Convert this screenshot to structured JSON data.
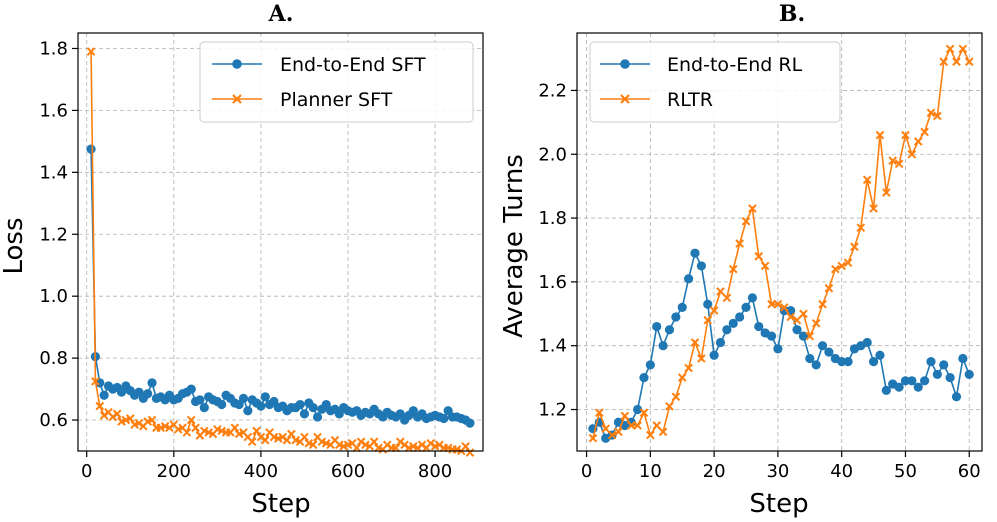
{
  "colors": {
    "blue": "#1f77b4",
    "orange": "#ff7f0e"
  },
  "chart_data": [
    {
      "panel": "A.",
      "type": "line",
      "xlabel": "Step",
      "ylabel": "Loss",
      "xlim": [
        -20,
        910
      ],
      "ylim": [
        0.5,
        1.85
      ],
      "xticks": [
        0,
        200,
        400,
        600,
        800
      ],
      "yticks": [
        0.6,
        0.8,
        1.0,
        1.2,
        1.4,
        1.6,
        1.8
      ],
      "ytick_format": 1,
      "grid": true,
      "legend": "top-right",
      "series": [
        {
          "name": "End-to-End SFT",
          "marker": "circle",
          "color": "blue",
          "x": [
            10,
            20,
            30,
            40,
            50,
            60,
            70,
            80,
            90,
            100,
            110,
            120,
            130,
            140,
            150,
            160,
            170,
            180,
            190,
            200,
            210,
            220,
            230,
            240,
            250,
            260,
            270,
            280,
            290,
            300,
            310,
            320,
            330,
            340,
            350,
            360,
            370,
            380,
            390,
            400,
            410,
            420,
            430,
            440,
            450,
            460,
            470,
            480,
            490,
            500,
            510,
            520,
            530,
            540,
            550,
            560,
            570,
            580,
            590,
            600,
            610,
            620,
            630,
            640,
            650,
            660,
            670,
            680,
            690,
            700,
            710,
            720,
            730,
            740,
            750,
            760,
            770,
            780,
            790,
            800,
            810,
            820,
            830,
            840,
            850,
            860,
            870,
            880
          ],
          "y": [
            1.475,
            0.805,
            0.72,
            0.68,
            0.71,
            0.7,
            0.705,
            0.69,
            0.71,
            0.695,
            0.68,
            0.69,
            0.67,
            0.685,
            0.72,
            0.67,
            0.675,
            0.665,
            0.68,
            0.665,
            0.67,
            0.685,
            0.69,
            0.7,
            0.66,
            0.665,
            0.64,
            0.675,
            0.665,
            0.66,
            0.65,
            0.68,
            0.67,
            0.655,
            0.65,
            0.67,
            0.63,
            0.665,
            0.655,
            0.645,
            0.675,
            0.65,
            0.66,
            0.64,
            0.645,
            0.63,
            0.64,
            0.64,
            0.65,
            0.62,
            0.655,
            0.64,
            0.61,
            0.635,
            0.65,
            0.63,
            0.635,
            0.62,
            0.64,
            0.63,
            0.625,
            0.63,
            0.615,
            0.625,
            0.62,
            0.635,
            0.62,
            0.61,
            0.625,
            0.615,
            0.61,
            0.62,
            0.6,
            0.615,
            0.63,
            0.61,
            0.62,
            0.605,
            0.61,
            0.615,
            0.61,
            0.605,
            0.63,
            0.61,
            0.61,
            0.605,
            0.6,
            0.59
          ]
        },
        {
          "name": "Planner SFT",
          "marker": "x",
          "color": "orange",
          "x": [
            10,
            20,
            30,
            40,
            50,
            60,
            70,
            80,
            90,
            100,
            110,
            120,
            130,
            140,
            150,
            160,
            170,
            180,
            190,
            200,
            210,
            220,
            230,
            240,
            250,
            260,
            270,
            280,
            290,
            300,
            310,
            320,
            330,
            340,
            350,
            360,
            370,
            380,
            390,
            400,
            410,
            420,
            430,
            440,
            450,
            460,
            470,
            480,
            490,
            500,
            510,
            520,
            530,
            540,
            550,
            560,
            570,
            580,
            590,
            600,
            610,
            620,
            630,
            640,
            650,
            660,
            670,
            680,
            690,
            700,
            710,
            720,
            730,
            740,
            750,
            760,
            770,
            780,
            790,
            800,
            810,
            820,
            830,
            840,
            850,
            860,
            870,
            880
          ],
          "y": [
            1.79,
            0.725,
            0.645,
            0.615,
            0.625,
            0.61,
            0.62,
            0.595,
            0.6,
            0.605,
            0.585,
            0.59,
            0.58,
            0.595,
            0.6,
            0.575,
            0.575,
            0.58,
            0.575,
            0.585,
            0.57,
            0.575,
            0.56,
            0.6,
            0.575,
            0.55,
            0.565,
            0.56,
            0.555,
            0.57,
            0.565,
            0.56,
            0.56,
            0.575,
            0.555,
            0.56,
            0.545,
            0.53,
            0.565,
            0.545,
            0.535,
            0.56,
            0.545,
            0.54,
            0.545,
            0.535,
            0.555,
            0.535,
            0.53,
            0.545,
            0.525,
            0.52,
            0.545,
            0.53,
            0.525,
            0.52,
            0.535,
            0.52,
            0.515,
            0.52,
            0.525,
            0.51,
            0.53,
            0.52,
            0.515,
            0.53,
            0.51,
            0.505,
            0.52,
            0.51,
            0.51,
            0.53,
            0.52,
            0.51,
            0.515,
            0.51,
            0.52,
            0.51,
            0.525,
            0.515,
            0.52,
            0.51,
            0.51,
            0.505,
            0.505,
            0.5,
            0.515,
            0.495
          ]
        }
      ]
    },
    {
      "panel": "B.",
      "type": "line",
      "xlabel": "Step",
      "ylabel": "Average Turns",
      "xlim": [
        -1.5,
        62
      ],
      "ylim": [
        1.07,
        2.38
      ],
      "xticks": [
        0,
        10,
        20,
        30,
        40,
        50,
        60
      ],
      "yticks": [
        1.2,
        1.4,
        1.6,
        1.8,
        2.0,
        2.2
      ],
      "ytick_format": 1,
      "grid": true,
      "legend": "top-left",
      "series": [
        {
          "name": "End-to-End RL",
          "marker": "circle",
          "color": "blue",
          "x": [
            1,
            2,
            3,
            4,
            5,
            6,
            7,
            8,
            9,
            10,
            11,
            12,
            13,
            14,
            15,
            16,
            17,
            18,
            19,
            20,
            21,
            22,
            23,
            24,
            25,
            26,
            27,
            28,
            29,
            30,
            31,
            32,
            33,
            34,
            35,
            36,
            37,
            38,
            39,
            40,
            41,
            42,
            43,
            44,
            45,
            46,
            47,
            48,
            49,
            50,
            51,
            52,
            53,
            54,
            55,
            56,
            57,
            58,
            59,
            60
          ],
          "y": [
            1.14,
            1.16,
            1.11,
            1.12,
            1.16,
            1.15,
            1.16,
            1.2,
            1.3,
            1.34,
            1.46,
            1.4,
            1.45,
            1.49,
            1.52,
            1.61,
            1.69,
            1.65,
            1.53,
            1.37,
            1.41,
            1.45,
            1.47,
            1.49,
            1.52,
            1.55,
            1.46,
            1.44,
            1.43,
            1.39,
            1.51,
            1.51,
            1.45,
            1.43,
            1.36,
            1.34,
            1.4,
            1.38,
            1.36,
            1.35,
            1.35,
            1.39,
            1.4,
            1.41,
            1.35,
            1.37,
            1.26,
            1.28,
            1.27,
            1.29,
            1.29,
            1.27,
            1.29,
            1.35,
            1.31,
            1.34,
            1.3,
            1.24,
            1.36,
            1.31
          ]
        },
        {
          "name": "RLTR",
          "marker": "x",
          "color": "orange",
          "x": [
            1,
            2,
            3,
            4,
            5,
            6,
            7,
            8,
            9,
            10,
            11,
            12,
            13,
            14,
            15,
            16,
            17,
            18,
            19,
            20,
            21,
            22,
            23,
            24,
            25,
            26,
            27,
            28,
            29,
            30,
            31,
            32,
            33,
            34,
            35,
            36,
            37,
            38,
            39,
            40,
            41,
            42,
            43,
            44,
            45,
            46,
            47,
            48,
            49,
            50,
            51,
            52,
            53,
            54,
            55,
            56,
            57,
            58,
            59,
            60
          ],
          "y": [
            1.11,
            1.19,
            1.14,
            1.12,
            1.13,
            1.18,
            1.15,
            1.15,
            1.19,
            1.12,
            1.15,
            1.13,
            1.21,
            1.24,
            1.3,
            1.33,
            1.41,
            1.36,
            1.48,
            1.51,
            1.57,
            1.55,
            1.64,
            1.72,
            1.79,
            1.83,
            1.68,
            1.65,
            1.53,
            1.53,
            1.52,
            1.49,
            1.48,
            1.5,
            1.43,
            1.47,
            1.53,
            1.58,
            1.64,
            1.65,
            1.66,
            1.71,
            1.77,
            1.92,
            1.83,
            2.06,
            1.88,
            1.98,
            1.97,
            2.06,
            2.0,
            2.04,
            2.07,
            2.13,
            2.12,
            2.29,
            2.33,
            2.29,
            2.33,
            2.29
          ]
        }
      ]
    }
  ]
}
